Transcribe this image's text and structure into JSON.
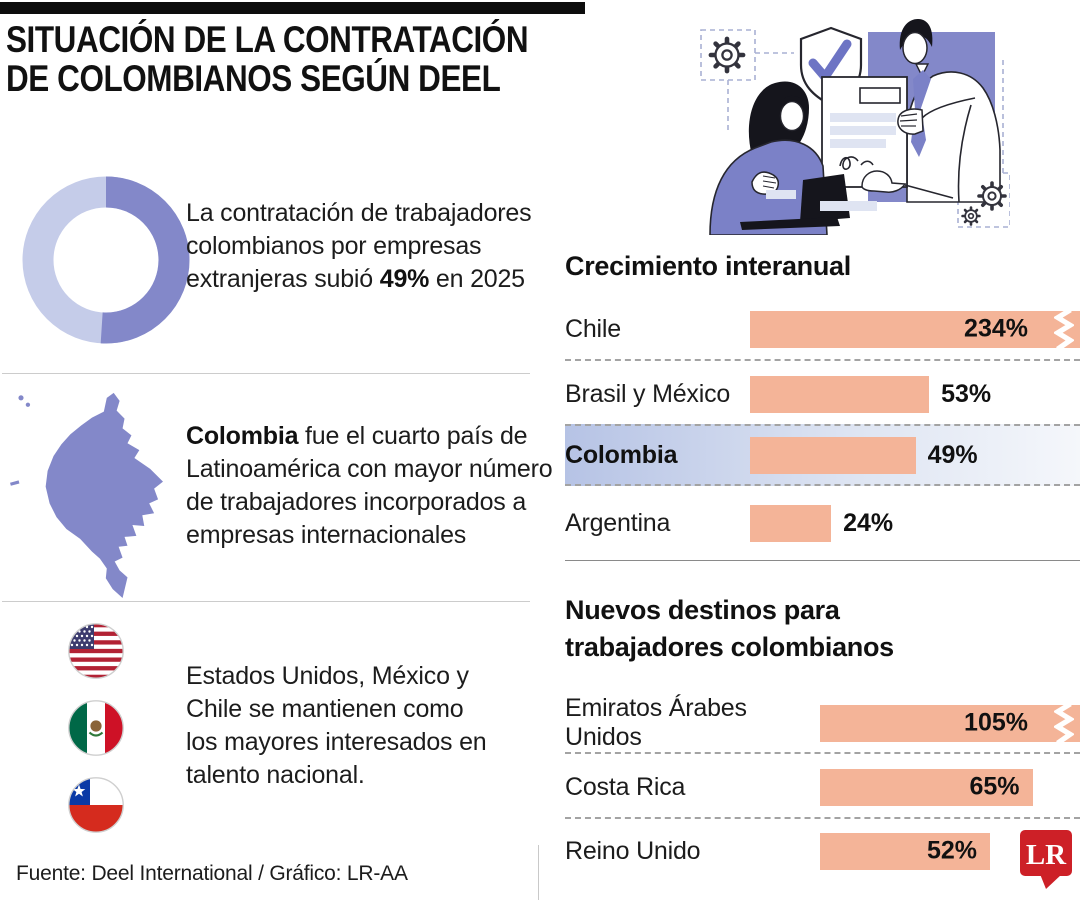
{
  "title": {
    "line1": "SITUACIÓN DE LA CONTRATACIÓN",
    "line2": "DE COLOMBIANOS SEGÚN DEEL"
  },
  "facts": {
    "hiring": {
      "before": "La contratación de trabajadores colombianos por empresas extranjeras subió ",
      "highlight": "49%",
      "after": " en 2025"
    },
    "ranking": {
      "highlight": "Colombia",
      "after": " fue el cuarto país de Latinoamérica con mayor número de trabajadores incorporados a empresas internacionales"
    },
    "countries": {
      "text": "Estados Unidos, México y Chile se mantienen como los mayores interesados en talento nacional.",
      "flags": [
        "usa-flag",
        "mexico-flag",
        "chile-flag"
      ]
    }
  },
  "sections": {
    "growth": {
      "heading": "Crecimiento interanual"
    },
    "destinations": {
      "heading": "Nuevos destinos para trabajadores colombianos"
    }
  },
  "footer": {
    "source": "Fuente: Deel International / Gráfico: LR-AA"
  },
  "logo": {
    "text": "LR",
    "color": "#cd2027"
  },
  "colors": {
    "bar": "#f4b498",
    "donut_dark": "#8388c9",
    "donut_light": "#c5cce9",
    "map": "#8388c9",
    "highlight_row": "#b6c3e5",
    "illustration_purple": "#8388c9",
    "illustration_lavender": "#dfe4f2"
  },
  "chart_data": [
    {
      "type": "bar",
      "title": "Crecimiento interanual",
      "orientation": "horizontal",
      "unit": "%",
      "categories": [
        "Chile",
        "Brasil y México",
        "Colombia",
        "Argentina"
      ],
      "values": [
        234,
        53,
        49,
        24
      ],
      "value_labels": [
        "234%",
        "53%",
        "49%",
        "24%"
      ],
      "highlight_category": "Colombia",
      "axis_break_categories": [
        "Chile"
      ],
      "bar_color": "#f4b498",
      "grid": false,
      "legend": false
    },
    {
      "type": "bar",
      "title": "Nuevos destinos para trabajadores colombianos",
      "orientation": "horizontal",
      "unit": "%",
      "categories": [
        "Emiratos Árabes Unidos",
        "Costa Rica",
        "Reino Unido"
      ],
      "values": [
        105,
        65,
        52
      ],
      "value_labels": [
        "105%",
        "65%",
        "52%"
      ],
      "axis_break_categories": [
        "Emiratos Árabes Unidos"
      ],
      "bar_color": "#f4b498",
      "grid": false,
      "legend": false
    },
    {
      "type": "pie",
      "variant": "donut",
      "title": "Donut decorativo junto al dato de 49%",
      "values": [
        51,
        49
      ],
      "colors": [
        "#8388c9",
        "#c5cce9"
      ]
    }
  ]
}
